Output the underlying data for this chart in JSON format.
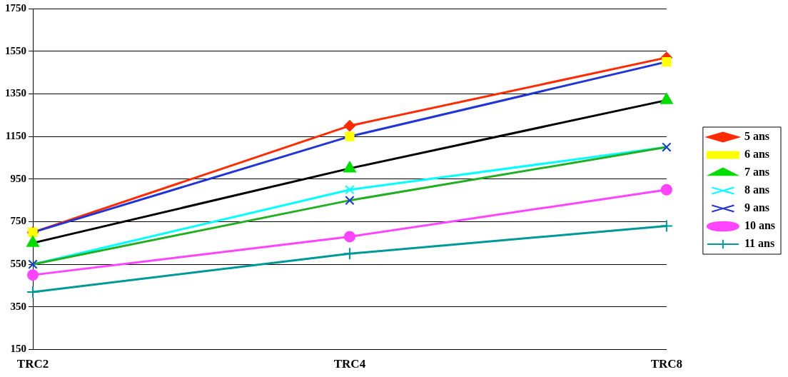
{
  "chart_data": {
    "type": "line",
    "categories": [
      "TRC2",
      "TRC4",
      "TRC8"
    ],
    "ylim": [
      150,
      1750
    ],
    "yticks": [
      150,
      350,
      550,
      750,
      950,
      1150,
      1350,
      1550,
      1750
    ],
    "grid": "y",
    "legend": "right",
    "series": [
      {
        "name": "5 ans",
        "color": "#ff2a00",
        "colors": [
          "#ff2a00",
          "#ff2a00",
          "#ff2a00"
        ],
        "marker": "diamond",
        "values": [
          700,
          1200,
          1520
        ]
      },
      {
        "name": "6 ans",
        "color": "#1f35d6",
        "colors": [
          "#ffff00",
          "#ffff00",
          "#ffff00"
        ],
        "marker": "square",
        "values": [
          700,
          1150,
          1500
        ]
      },
      {
        "name": "7 ans",
        "color": "#000000",
        "colors": [
          "#00dd00",
          "#00dd00",
          "#00dd00"
        ],
        "marker": "triangle",
        "values": [
          650,
          1000,
          1320
        ]
      },
      {
        "name": "8 ans",
        "color": "#00ffff",
        "colors": [
          "#00ffff",
          "#00ffff",
          "#00ffff"
        ],
        "marker": "cross",
        "values": [
          550,
          900,
          1100
        ]
      },
      {
        "name": "9 ans",
        "color": "#22b022",
        "colors": [
          "#1f35d6",
          "#1f35d6",
          "#1f35d6"
        ],
        "marker": "cross",
        "values": [
          550,
          850,
          1100
        ]
      },
      {
        "name": "10 ans",
        "color": "#ff44ff",
        "colors": [
          "#ff44ff",
          "#ff44ff",
          "#ff44ff"
        ],
        "marker": "circle",
        "values": [
          500,
          680,
          900
        ]
      },
      {
        "name": "11 ans",
        "color": "#009999",
        "colors": [
          "#009999",
          "#009999",
          "#009999"
        ],
        "marker": "plus",
        "values": [
          420,
          600,
          730
        ]
      }
    ]
  }
}
